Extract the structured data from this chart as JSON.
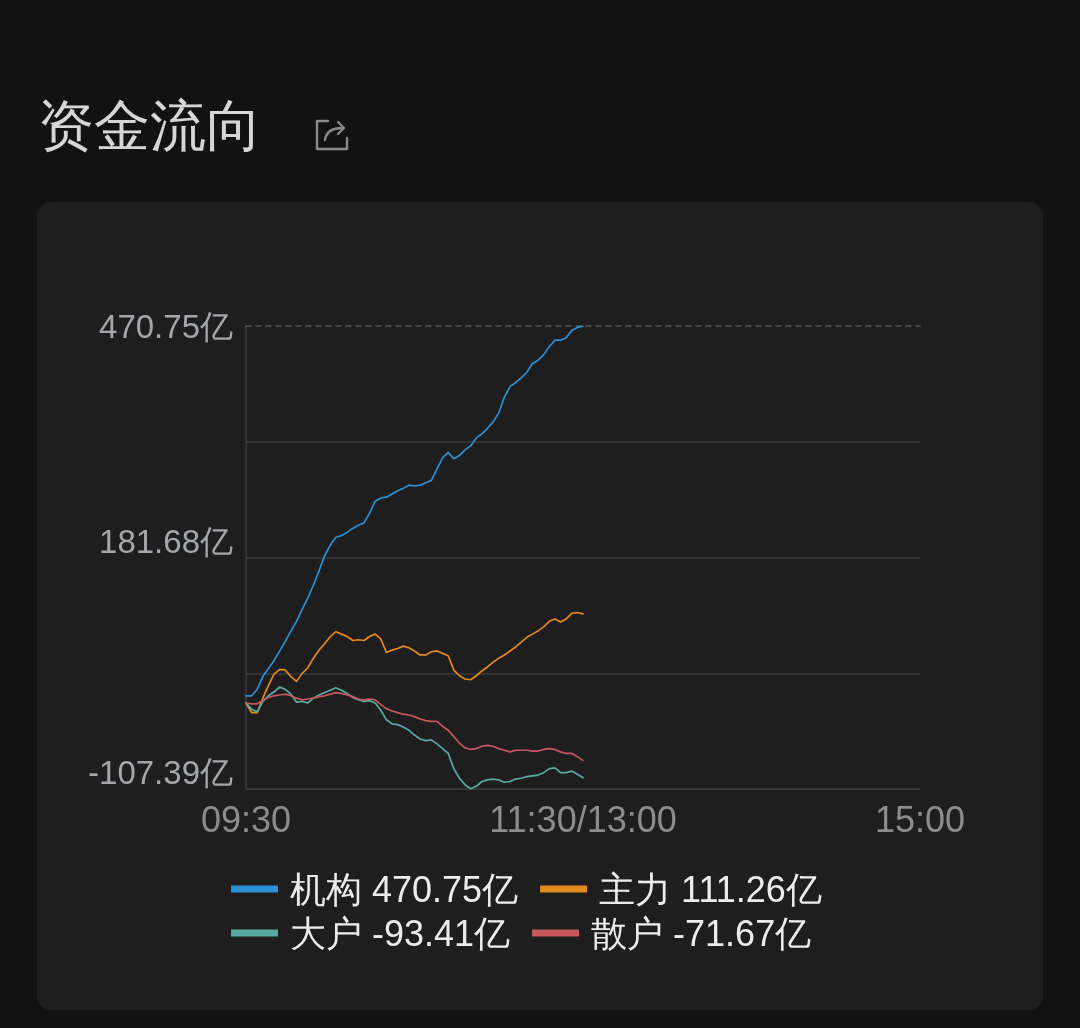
{
  "chart_data": {
    "type": "line",
    "title": "资金流向",
    "categories": [
      "09:30",
      null,
      null,
      null,
      null,
      null,
      null,
      null,
      null,
      null,
      null,
      null,
      null,
      null,
      null,
      null,
      null,
      null,
      null,
      null,
      null,
      null,
      null,
      null,
      null,
      null,
      null,
      null,
      null,
      null,
      null,
      null,
      null,
      null,
      null,
      null,
      null,
      null,
      null,
      null,
      null,
      null,
      null,
      null,
      null,
      null,
      null,
      null,
      null,
      null,
      null,
      null,
      null,
      null,
      null,
      null,
      null,
      null,
      null,
      null,
      "11:30/13:00",
      null,
      null,
      null,
      null,
      null,
      null,
      null,
      null,
      null,
      null,
      null,
      null,
      null,
      null,
      null,
      null,
      null,
      null,
      null,
      null,
      null,
      null,
      null,
      null,
      null,
      null,
      null,
      null,
      null,
      null,
      null,
      null,
      null,
      null,
      null,
      null,
      null,
      null,
      null,
      null,
      null,
      null,
      null,
      null,
      null,
      null,
      null,
      null,
      null,
      null,
      null,
      null,
      null,
      null,
      null,
      null,
      null,
      null,
      null,
      "15:00"
    ],
    "ylim": [
      -107.39,
      470.75
    ],
    "yticks": [
      {
        "value": -107.39,
        "label": "-107.39亿"
      },
      {
        "value": 37.145,
        "label": null
      },
      {
        "value": 181.68,
        "label": "181.68亿"
      },
      {
        "value": 326.215,
        "label": null
      },
      {
        "value": 470.75,
        "label": "470.75亿"
      }
    ],
    "grid": "y",
    "legend": "bottom",
    "marker": "none",
    "series": [
      {
        "name": "机构 470.75亿",
        "color": "#2e90d4",
        "values": [
          9,
          9,
          17,
          33,
          43,
          53,
          65,
          77,
          90,
          102,
          117,
          131,
          147,
          165,
          184,
          197,
          207,
          209,
          213,
          218,
          222,
          225,
          237,
          252,
          256,
          257,
          261,
          265,
          268,
          272,
          271,
          272,
          275,
          278,
          292,
          306,
          313,
          305,
          309,
          316,
          321,
          331,
          336,
          343,
          351,
          362,
          382,
          395,
          400,
          406,
          413,
          424,
          428,
          435,
          445,
          453,
          453,
          456,
          465,
          469,
          470.75,
          null,
          null,
          null,
          null,
          null,
          null,
          null,
          null,
          null,
          null,
          null,
          null,
          null,
          null,
          null,
          null,
          null,
          null,
          null,
          null,
          null,
          null,
          null,
          null,
          null,
          null,
          null,
          null,
          null,
          null,
          null,
          null,
          null,
          null,
          null,
          null,
          null,
          null,
          null,
          null,
          null,
          null,
          null,
          null,
          null,
          null,
          null,
          null,
          null,
          null,
          null,
          null,
          null,
          null,
          null,
          null,
          null,
          null,
          null,
          null
        ]
      },
      {
        "name": "主力 111.26亿",
        "color": "#e2891f",
        "values": [
          0,
          -12,
          -12,
          6,
          22,
          36,
          42,
          41,
          33,
          27,
          37,
          44,
          56,
          66,
          74,
          83,
          89,
          86,
          83,
          78,
          79,
          78,
          83,
          86,
          80,
          63,
          66,
          68,
          71,
          69,
          65,
          60,
          60,
          64,
          65,
          62,
          59,
          41,
          34,
          30,
          29,
          34,
          40,
          45,
          51,
          56,
          60,
          65,
          70,
          76,
          82,
          86,
          90,
          95,
          102,
          105,
          101,
          105,
          112,
          113,
          111.26,
          null,
          null,
          null,
          null,
          null,
          null,
          null,
          null,
          null,
          null,
          null,
          null,
          null,
          null,
          null,
          null,
          null,
          null,
          null,
          null,
          null,
          null,
          null,
          null,
          null,
          null,
          null,
          null,
          null,
          null,
          null,
          null,
          null,
          null,
          null,
          null,
          null,
          null,
          null,
          null,
          null,
          null,
          null,
          null,
          null,
          null,
          null,
          null,
          null,
          null,
          null,
          null,
          null,
          null,
          null,
          null,
          null,
          null,
          null,
          null
        ]
      },
      {
        "name": "大户 -93.41亿",
        "color": "#5aa9a4",
        "values": [
          0,
          -8,
          -11,
          2,
          9,
          14,
          20,
          17,
          11,
          1,
          2,
          0,
          6,
          10,
          13,
          16,
          19,
          16,
          12,
          7,
          4,
          2,
          3,
          0,
          -9,
          -21,
          -26,
          -27,
          -30,
          -34,
          -40,
          -45,
          -47,
          -46,
          -51,
          -57,
          -63,
          -82,
          -94,
          -102,
          -107,
          -104,
          -98,
          -96,
          -95,
          -96,
          -99,
          -98,
          -95,
          -94,
          -92,
          -91,
          -90,
          -87,
          -82,
          -81,
          -87,
          -87,
          -85,
          -89,
          -93.41,
          null,
          null,
          null,
          null,
          null,
          null,
          null,
          null,
          null,
          null,
          null,
          null,
          null,
          null,
          null,
          null,
          null,
          null,
          null,
          null,
          null,
          null,
          null,
          null,
          null,
          null,
          null,
          null,
          null,
          null,
          null,
          null,
          null,
          null,
          null,
          null,
          null,
          null,
          null,
          null,
          null,
          null,
          null,
          null,
          null,
          null,
          null,
          null,
          null,
          null,
          null,
          null,
          null,
          null,
          null,
          null,
          null,
          null,
          null,
          null
        ]
      },
      {
        "name": "散户 -71.67亿",
        "color": "#c4585d",
        "values": [
          0,
          -1,
          -1,
          3,
          7,
          9,
          10,
          11,
          9,
          6,
          4,
          5,
          6,
          8,
          9,
          11,
          13,
          12,
          10,
          8,
          5,
          4,
          5,
          4,
          -2,
          -7,
          -10,
          -12,
          -14,
          -15,
          -17,
          -20,
          -22,
          -23,
          -23,
          -29,
          -34,
          -42,
          -50,
          -56,
          -58,
          -57,
          -54,
          -53,
          -54,
          -57,
          -59,
          -61,
          -59,
          -59,
          -59,
          -60,
          -60,
          -58,
          -57,
          -58,
          -61,
          -63,
          -63,
          -67,
          -71.67,
          null,
          null,
          null,
          null,
          null,
          null,
          null,
          null,
          null,
          null,
          null,
          null,
          null,
          null,
          null,
          null,
          null,
          null,
          null,
          null,
          null,
          null,
          null,
          null,
          null,
          null,
          null,
          null,
          null,
          null,
          null,
          null,
          null,
          null,
          null,
          null,
          null,
          null,
          null,
          null,
          null,
          null,
          null,
          null,
          null,
          null,
          null,
          null,
          null,
          null,
          null,
          null,
          null,
          null,
          null,
          null,
          null,
          null,
          null,
          null
        ]
      }
    ]
  }
}
